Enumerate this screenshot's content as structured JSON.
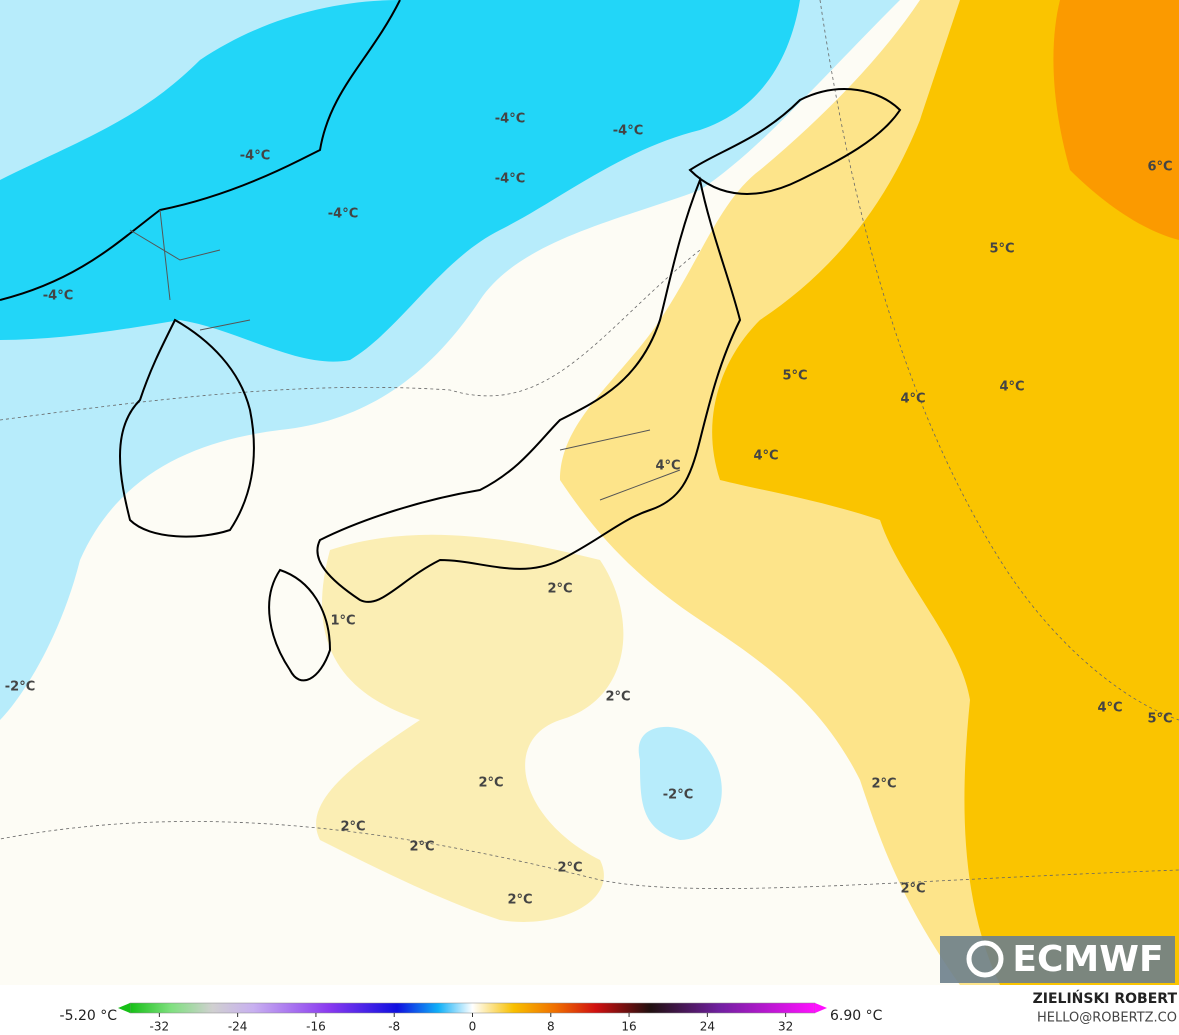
{
  "map": {
    "contour_labels": [
      "-4°C",
      "-4°C",
      "-4°C",
      "-4°C",
      "-4°C",
      "-4°C",
      "6°C",
      "5°C",
      "5°C",
      "4°C",
      "4°C",
      "4°C",
      "4°C",
      "2°C",
      "1°C",
      "2°C",
      "-2°C",
      "4°C",
      "5°C",
      "2°C",
      "-2°C",
      "2°C",
      "2°C",
      "2°C",
      "2°C",
      "2°C",
      "2°C"
    ],
    "colorbar": {
      "min_label": "-5.20 °C",
      "max_label": "6.90 °C",
      "lim": [
        -35,
        35
      ],
      "ticks": [
        -32,
        -24,
        -16,
        -8,
        0,
        8,
        16,
        24,
        32
      ]
    },
    "logo": "ECMWF",
    "author": "ZIELIŃSKI ROBERT",
    "contact": "HELLO@ROBERTZ.CO"
  }
}
